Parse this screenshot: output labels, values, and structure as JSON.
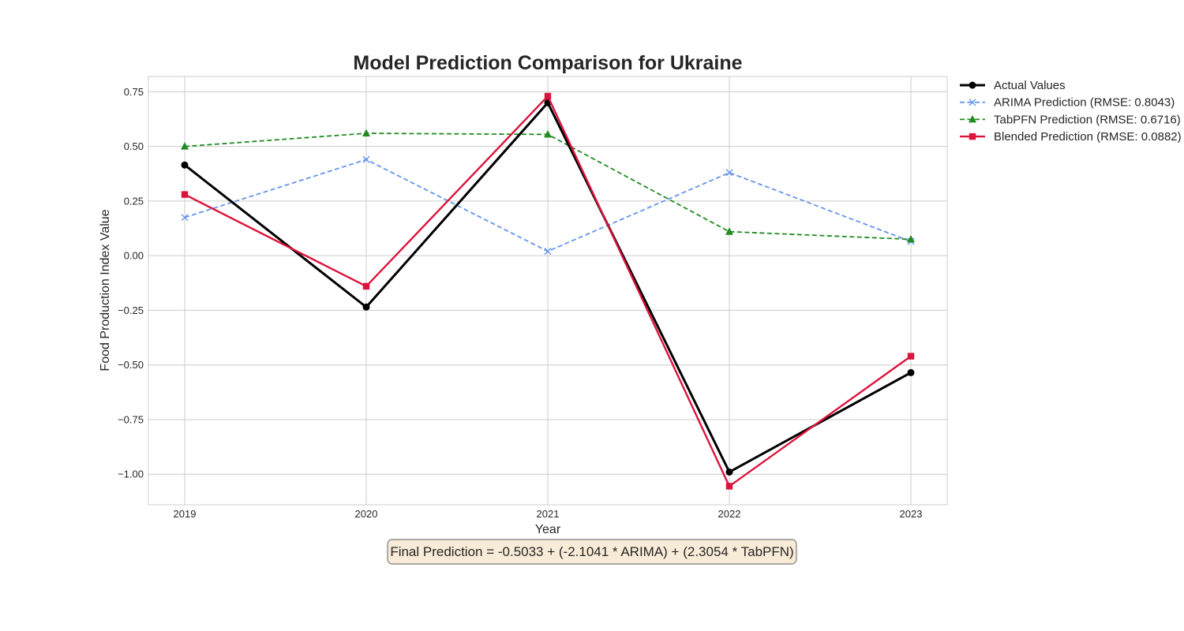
{
  "chart_data": {
    "type": "line",
    "title": "Model Prediction Comparison for Ukraine",
    "xlabel": "Year",
    "ylabel": "Food Production Index Value",
    "x": [
      "2019",
      "2020",
      "2021",
      "2022",
      "2023"
    ],
    "ylim": [
      -1.14,
      0.82
    ],
    "yticks": [
      0.75,
      0.5,
      0.25,
      0.0,
      -0.25,
      -0.5,
      -0.75,
      -1.0
    ],
    "ytick_labels": [
      "0.75",
      "0.50",
      "0.25",
      "0.00",
      "−0.25",
      "−0.50",
      "−0.75",
      "−1.00"
    ],
    "grid": true,
    "legend_position": "outside-top-right",
    "series": [
      {
        "name": "Actual Values",
        "values": [
          0.415,
          -0.235,
          0.7,
          -0.99,
          -0.535
        ],
        "color": "#000000",
        "marker": "circle",
        "dash": "solid"
      },
      {
        "name": "ARIMA Prediction (RMSE: 0.8043)",
        "values": [
          0.175,
          0.44,
          0.02,
          0.38,
          0.065
        ],
        "color": "#6495ED",
        "marker": "x",
        "dash": "dashed"
      },
      {
        "name": "TabPFN Prediction (RMSE: 0.6716)",
        "values": [
          0.5,
          0.56,
          0.555,
          0.11,
          0.075
        ],
        "color": "#228B22",
        "marker": "triangle",
        "dash": "dashed"
      },
      {
        "name": "Blended Prediction (RMSE: 0.0882)",
        "values": [
          0.28,
          -0.14,
          0.73,
          -1.055,
          -0.46
        ],
        "color": "#DC143C",
        "marker": "square",
        "dash": "solid"
      }
    ],
    "annotation": "Final Prediction = -0.5033 + (-2.1041 * ARIMA) + (2.3054 * TabPFN)"
  }
}
